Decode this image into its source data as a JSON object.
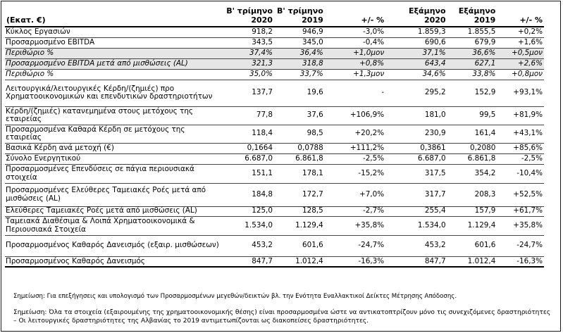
{
  "header": {
    "unit": "(Εκατ. €)",
    "cols": [
      [
        "Β' τρίμηνο",
        "2020"
      ],
      [
        "Β' τρίμηνο",
        "2019"
      ],
      [
        "+/- %",
        ""
      ],
      [
        "Εξάμηνο",
        "2020"
      ],
      [
        "Εξάμηνο",
        "2019"
      ],
      [
        "+/- %",
        ""
      ]
    ]
  },
  "rows": [
    {
      "label": "Κύκλος Εργασιών",
      "h": 15,
      "v": [
        "918,2",
        "946,9",
        "-3,0%",
        "1.859,3",
        "1.855,5",
        "+0,2%"
      ]
    },
    {
      "label": "Προσαρμοσμένο EBITDA",
      "h": 15,
      "v": [
        "343,5",
        "345,0",
        "-0,4%",
        "690,6",
        "679,9",
        "+1,6%"
      ]
    },
    {
      "label": "Περιθώριο %",
      "h": 15,
      "shade": true,
      "italic": true,
      "v": [
        "37,4%",
        "36,4%",
        "+1,0μον",
        "37,1%",
        "36,6%",
        "+0,5μον"
      ]
    },
    {
      "label": "Προσαρμοσμένο EBITDA μετά από μισθώσεις (AL)",
      "h": 15,
      "shade": true,
      "italic": true,
      "v": [
        "321,3",
        "318,8",
        "+0,8%",
        "643,4",
        "627,1",
        "+2,6%"
      ]
    },
    {
      "label": "Περιθώριο %",
      "h": 15,
      "italic": true,
      "v": [
        "35,0%",
        "33,7%",
        "+1,3μον",
        "34,6%",
        "33,8%",
        "+0,8μον"
      ]
    },
    {
      "label": "Λειτουργικά/λειτουργικές Κέρδη/(ζημιές) προ Χρηματοοικονομικών και επενδυτικών δραστηριοτήτων",
      "h": 38,
      "v": [
        "137,7",
        "19,6",
        "-",
        "295,2",
        "152,9",
        "+93,1%"
      ]
    },
    {
      "label": "Κέρδη/(ζημιές) κατανεμημένα στους μετόχους της εταιρείας",
      "h": 26,
      "v": [
        "77,8",
        "37,6",
        "+106,9%",
        "181,0",
        "99,5",
        "+81,9%"
      ]
    },
    {
      "label": "Προσαρμοσμένα Καθαρά Κέρδη σε μετόχους της εταιρείας",
      "h": 26,
      "v": [
        "118,4",
        "98,5",
        "+20,2%",
        "230,9",
        "161,4",
        "+43,1%"
      ]
    },
    {
      "label": "Βασικά Κέρδη ανά μετοχή (€)",
      "h": 15,
      "v": [
        "0,1664",
        "0,0788",
        "+111,2%",
        "0,3861",
        "0,2080",
        "+85,6%"
      ]
    },
    {
      "label": "Σύνολο Ενεργητικού",
      "h": 15,
      "v": [
        "6.687,0",
        "6.861,8",
        "-2,5%",
        "6.687,0",
        "6.861,8",
        "-2,5%"
      ]
    },
    {
      "label": "Προσαρμοσμένες Επενδύσεις σε πάγια περιουσιακά στοιχεία",
      "h": 27,
      "v": [
        "151,1",
        "178,1",
        "-15,2%",
        "317,5",
        "354,2",
        "-10,4%"
      ]
    },
    {
      "label": "Προσαρμοσμένες  Ελεύθερες Ταμειακές Ροές μετά από μισθώσεις (AL)",
      "h": 33,
      "v": [
        "184,8",
        "172,7",
        "+7,0%",
        "317,7",
        "208,3",
        "+52,5%"
      ]
    },
    {
      "label": "Ελεύθερες Ταμειακές Ροές μετά από μισθώσεις (AL)",
      "h": 14,
      "v": [
        "125,0",
        "128,5",
        "-2,7%",
        "255,4",
        "157,9",
        "+61,7%"
      ]
    },
    {
      "label": "Ταμειακά Διαθέσιμα & Λοιπά Χρηματοοικονομικά & Περιουσιακά Στοιχεία",
      "h": 27,
      "v": [
        "1.534,0",
        "1.129,4",
        "+35,8%",
        "1.534,0",
        "1.129,4",
        "+35,8%"
      ]
    },
    {
      "label": "Προσαρμοσμένος Καθαρός Δανεισμός (εξαιρ. μισθώσεων)",
      "h": 30,
      "v": [
        "453,2",
        "601,6",
        "-24,7%",
        "453,2",
        "601,6",
        "-24,7%"
      ]
    },
    {
      "label": "Προσαρμοσμένος Καθαρός Δανεισμός",
      "h": 15,
      "v": [
        "847,7",
        "1.012,4",
        "-16,3%",
        "847,7",
        "1.012,4",
        "-16,3%"
      ]
    }
  ],
  "notes": {
    "note1": "Σημείωση: Για επεξήγησεις και υπολογισμό των Προσαρμοσμένων μεγεθών/δεικτών βλ. την Ενότητα Εναλλακτικοί Δείκτες Μέτρησης Απόδοσης.",
    "note2": "Σημείωση: Όλα τα στοιχεία (εξαιρουμένης της χρηματοοικονομικής θέσης) είναι προσαρμοσμένα ώστε να αντικατοπτρίζουν μόνο τις συνεχιζόμενες δραστηριότητες – Οι λειτουργικές δραστηριότητες της Αλβανίας το 2019 αντιμετωπίζονται ως διακοπείσες δραστηριότητες."
  }
}
